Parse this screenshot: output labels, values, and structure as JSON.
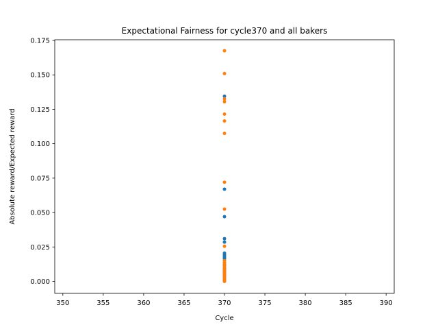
{
  "chart_data": {
    "type": "scatter",
    "title": "Expectational Fairness for cycle370 and all bakers",
    "xlabel": "Cycle",
    "ylabel": "Absolute reward/Expected reward",
    "xlim": [
      349,
      391
    ],
    "ylim": [
      -0.0087,
      0.1755
    ],
    "xticks": [
      350,
      355,
      360,
      365,
      370,
      375,
      380,
      385,
      390
    ],
    "xtick_labels": [
      "350",
      "355",
      "360",
      "365",
      "370",
      "375",
      "380",
      "385",
      "390"
    ],
    "yticks": [
      0.0,
      0.025,
      0.05,
      0.075,
      0.1,
      0.125,
      0.15,
      0.175
    ],
    "ytick_labels": [
      "0.000",
      "0.025",
      "0.050",
      "0.075",
      "0.100",
      "0.125",
      "0.150",
      "0.175"
    ],
    "grid": false,
    "series": [
      {
        "color": "#1f77b4",
        "x": [
          370,
          370,
          370,
          370,
          370,
          370,
          370,
          370,
          370,
          370,
          370,
          370,
          370,
          370,
          370,
          370,
          370,
          370,
          370,
          370,
          370,
          370,
          370,
          370,
          370,
          370,
          370,
          370,
          370,
          370
        ],
        "y": [
          0.1345,
          0.067,
          0.047,
          0.031,
          0.0285,
          0.0205,
          0.0195,
          0.0185,
          0.0175,
          0.0165,
          0.015,
          0.0135,
          0.012,
          0.011,
          0.0095,
          0.0085,
          0.0075,
          0.0065,
          0.0055,
          0.0048,
          0.004,
          0.0032,
          0.0025,
          0.0018,
          0.0012,
          0.0008,
          0.0005,
          0.0003,
          0.0002,
          0.0001
        ]
      },
      {
        "color": "#ff7f0e",
        "x": [
          370,
          370,
          370,
          370,
          370,
          370,
          370,
          370,
          370,
          370,
          370,
          370,
          370,
          370,
          370,
          370,
          370,
          370,
          370,
          370,
          370,
          370,
          370,
          370,
          370,
          370,
          370,
          370,
          370,
          370
        ],
        "y": [
          0.1675,
          0.151,
          0.1325,
          0.1305,
          0.1215,
          0.1165,
          0.1075,
          0.072,
          0.0525,
          0.0255,
          0.015,
          0.0135,
          0.0125,
          0.011,
          0.0098,
          0.0088,
          0.0078,
          0.007,
          0.006,
          0.0052,
          0.0045,
          0.0038,
          0.003,
          0.0024,
          0.0018,
          0.0013,
          0.0009,
          0.0006,
          0.0003,
          0.0001
        ]
      }
    ]
  }
}
